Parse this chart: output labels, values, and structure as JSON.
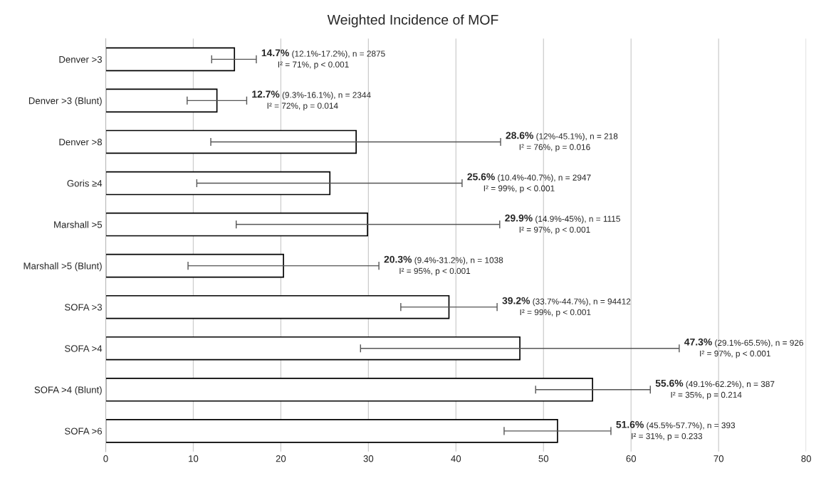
{
  "chart_data": {
    "type": "bar",
    "orientation": "horizontal",
    "title": "Weighted Incidence of MOF",
    "categories": [
      "Denver >3",
      "Denver >3 (Blunt)",
      "Denver >8",
      "Goris ≥4",
      "Marshall >5",
      "Marshall >5 (Blunt)",
      "SOFA >3",
      "SOFA >4",
      "SOFA >4 (Blunt)",
      "SOFA >6"
    ],
    "values": [
      14.7,
      12.7,
      28.6,
      25.6,
      29.9,
      20.3,
      39.2,
      47.3,
      55.6,
      51.6
    ],
    "errors": [
      [
        12.1,
        17.2
      ],
      [
        9.3,
        16.1
      ],
      [
        12,
        45.1
      ],
      [
        10.4,
        40.7
      ],
      [
        14.9,
        45
      ],
      [
        9.4,
        31.2
      ],
      [
        33.7,
        44.7
      ],
      [
        29.1,
        65.5
      ],
      [
        49.1,
        62.2
      ],
      [
        45.5,
        57.7
      ]
    ],
    "annotations": [
      {
        "text": "14.7% (12.1%-17.2%), n = 2875\nI² = 71%, p < 0.001",
        "x": 17.2,
        "y": "Denver >3"
      },
      {
        "text": "12.7% (9.3%-16.1%), n = 2344\nI² = 72%, p = 0.014",
        "x": 16.1,
        "y": "Denver >3 (Blunt)"
      },
      {
        "text": "28.6% (12%-45.1%), n = 218\nI² = 76%, p = 0.016",
        "x": 45.1,
        "y": "Denver >8"
      },
      {
        "text": "25.6% (10.4%-40.7%), n = 2947\nI² = 99%, p < 0.001",
        "x": 40.7,
        "y": "Goris ≥4"
      },
      {
        "text": "29.9% (14.9%-45%), n = 1115\nI² = 97%, p < 0.001",
        "x": 45,
        "y": "Marshall >5"
      },
      {
        "text": "20.3% (9.4%-31.2%), n = 1038\nI² = 95%, p < 0.001",
        "x": 31.2,
        "y": "Marshall >5 (Blunt)"
      },
      {
        "text": "39.2% (33.7%-44.7%), n = 94412\nI² = 99%, p < 0.001",
        "x": 44.7,
        "y": "SOFA >3"
      },
      {
        "text": "47.3% (29.1%-65.5%), n = 926\nI² = 97%, p < 0.001",
        "x": 65.5,
        "y": "SOFA >4"
      },
      {
        "text": "55.6% (49.1%-62.2%), n = 387\nI² = 35%, p = 0.214",
        "x": 62.2,
        "y": "SOFA >4 (Blunt)"
      },
      {
        "text": "51.6% (45.5%-57.7%), n = 393\nI² = 31%, p = 0.233",
        "x": 57.7,
        "y": "SOFA >6"
      }
    ],
    "color": "#ffffff",
    "xlim": [
      0,
      80
    ],
    "xticks": [
      0,
      10,
      20,
      30,
      40,
      50,
      60,
      70,
      80
    ],
    "grid": "x"
  }
}
